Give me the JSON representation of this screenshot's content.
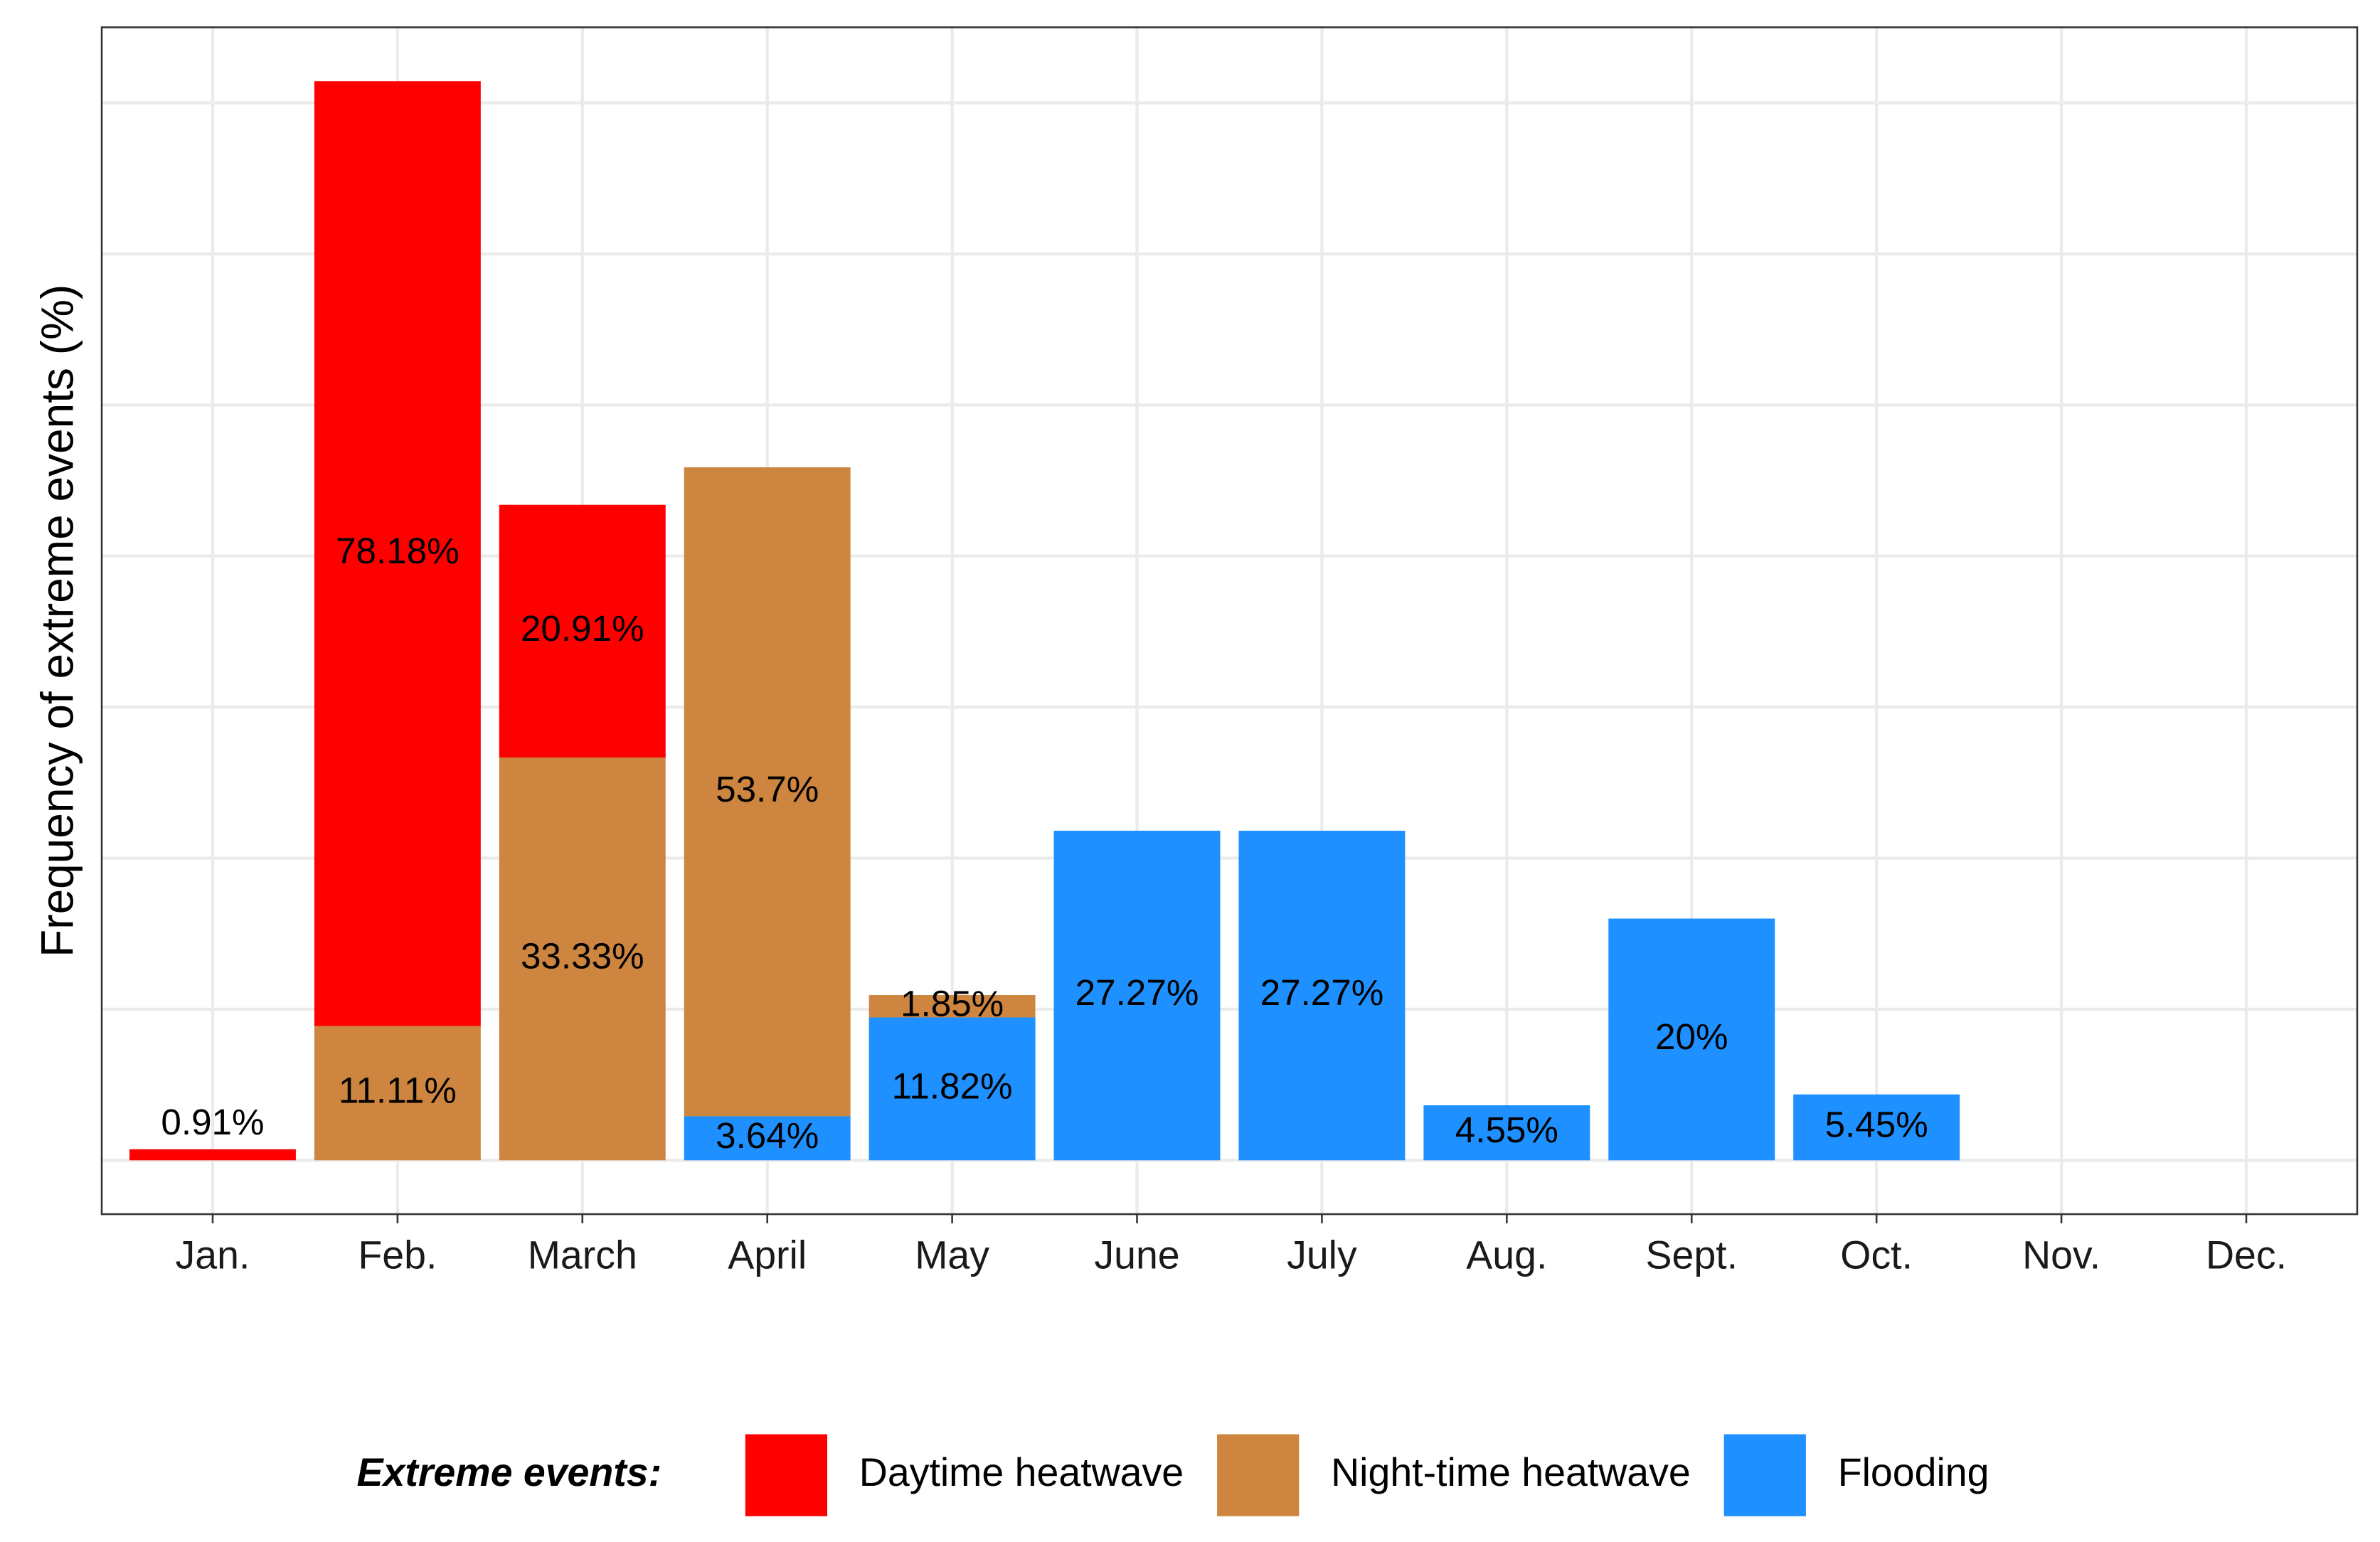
{
  "chart_data": {
    "type": "bar",
    "stacked": true,
    "y_label": "Frequency of extreme events (%)",
    "categories": [
      "Jan.",
      "Feb.",
      "March",
      "April",
      "May",
      "June",
      "July",
      "Aug.",
      "Sept.",
      "Oct.",
      "Nov.",
      "Dec."
    ],
    "series": [
      {
        "name": "Daytime heatwave",
        "color": "#ff0000",
        "values": [
          0.91,
          78.18,
          20.91,
          null,
          null,
          null,
          null,
          null,
          null,
          null,
          null,
          null
        ],
        "value_labels": [
          "0.91%",
          "78.18%",
          "20.91%",
          null,
          null,
          null,
          null,
          null,
          null,
          null,
          null,
          null
        ]
      },
      {
        "name": "Night-time heatwave",
        "color": "#cd853f",
        "values": [
          null,
          11.11,
          33.33,
          53.7,
          1.85,
          null,
          null,
          null,
          null,
          null,
          null,
          null
        ],
        "value_labels": [
          null,
          "11.11%",
          "33.33%",
          "53.7%",
          "1.85%",
          null,
          null,
          null,
          null,
          null,
          null,
          null
        ]
      },
      {
        "name": "Flooding",
        "color": "#1e90ff",
        "values": [
          null,
          null,
          null,
          3.64,
          11.82,
          27.27,
          27.27,
          4.55,
          20,
          5.45,
          null,
          null
        ],
        "value_labels": [
          null,
          null,
          null,
          "3.64%",
          "11.82%",
          "27.27%",
          "27.27%",
          "4.55%",
          "20%",
          "5.45%",
          null,
          null
        ]
      }
    ],
    "legend_title": "Extreme events:",
    "legend_position": "bottom",
    "ylim": [
      -4.46,
      93.75
    ],
    "ygrid": [
      0,
      12.5,
      25,
      37.5,
      50,
      62.5,
      75,
      87.5
    ],
    "grid": true
  }
}
